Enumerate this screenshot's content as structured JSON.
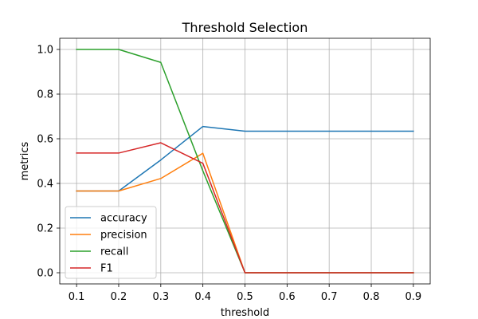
{
  "chart_data": {
    "type": "line",
    "title": "Threshold Selection",
    "xlabel": "threshold",
    "ylabel": "metrics",
    "x": [
      0.1,
      0.2,
      0.3,
      0.4,
      0.5,
      0.6,
      0.7,
      0.8,
      0.9
    ],
    "x_ticks": [
      "0.1",
      "0.2",
      "0.3",
      "0.4",
      "0.5",
      "0.6",
      "0.7",
      "0.8",
      "0.9"
    ],
    "y_ticks": [
      "0.0",
      "0.2",
      "0.4",
      "0.6",
      "0.8",
      "1.0"
    ],
    "xlim": [
      0.06,
      0.94
    ],
    "ylim": [
      -0.05,
      1.05
    ],
    "grid": true,
    "legend_position": "lower-left",
    "series": [
      {
        "name": "accuracy",
        "color": "#1f77b4",
        "values": [
          0.366,
          0.366,
          0.505,
          0.655,
          0.634,
          0.634,
          0.634,
          0.634,
          0.634
        ]
      },
      {
        "name": "precision",
        "color": "#ff7f0e",
        "values": [
          0.366,
          0.366,
          0.422,
          0.535,
          0.0,
          0.0,
          0.0,
          0.0,
          0.0
        ]
      },
      {
        "name": "recall",
        "color": "#2ca02c",
        "values": [
          1.0,
          1.0,
          0.942,
          0.456,
          0.0,
          0.0,
          0.0,
          0.0,
          0.0
        ]
      },
      {
        "name": "F1",
        "color": "#d62728",
        "values": [
          0.536,
          0.536,
          0.582,
          0.49,
          0.0,
          0.0,
          0.0,
          0.0,
          0.0
        ]
      }
    ]
  }
}
